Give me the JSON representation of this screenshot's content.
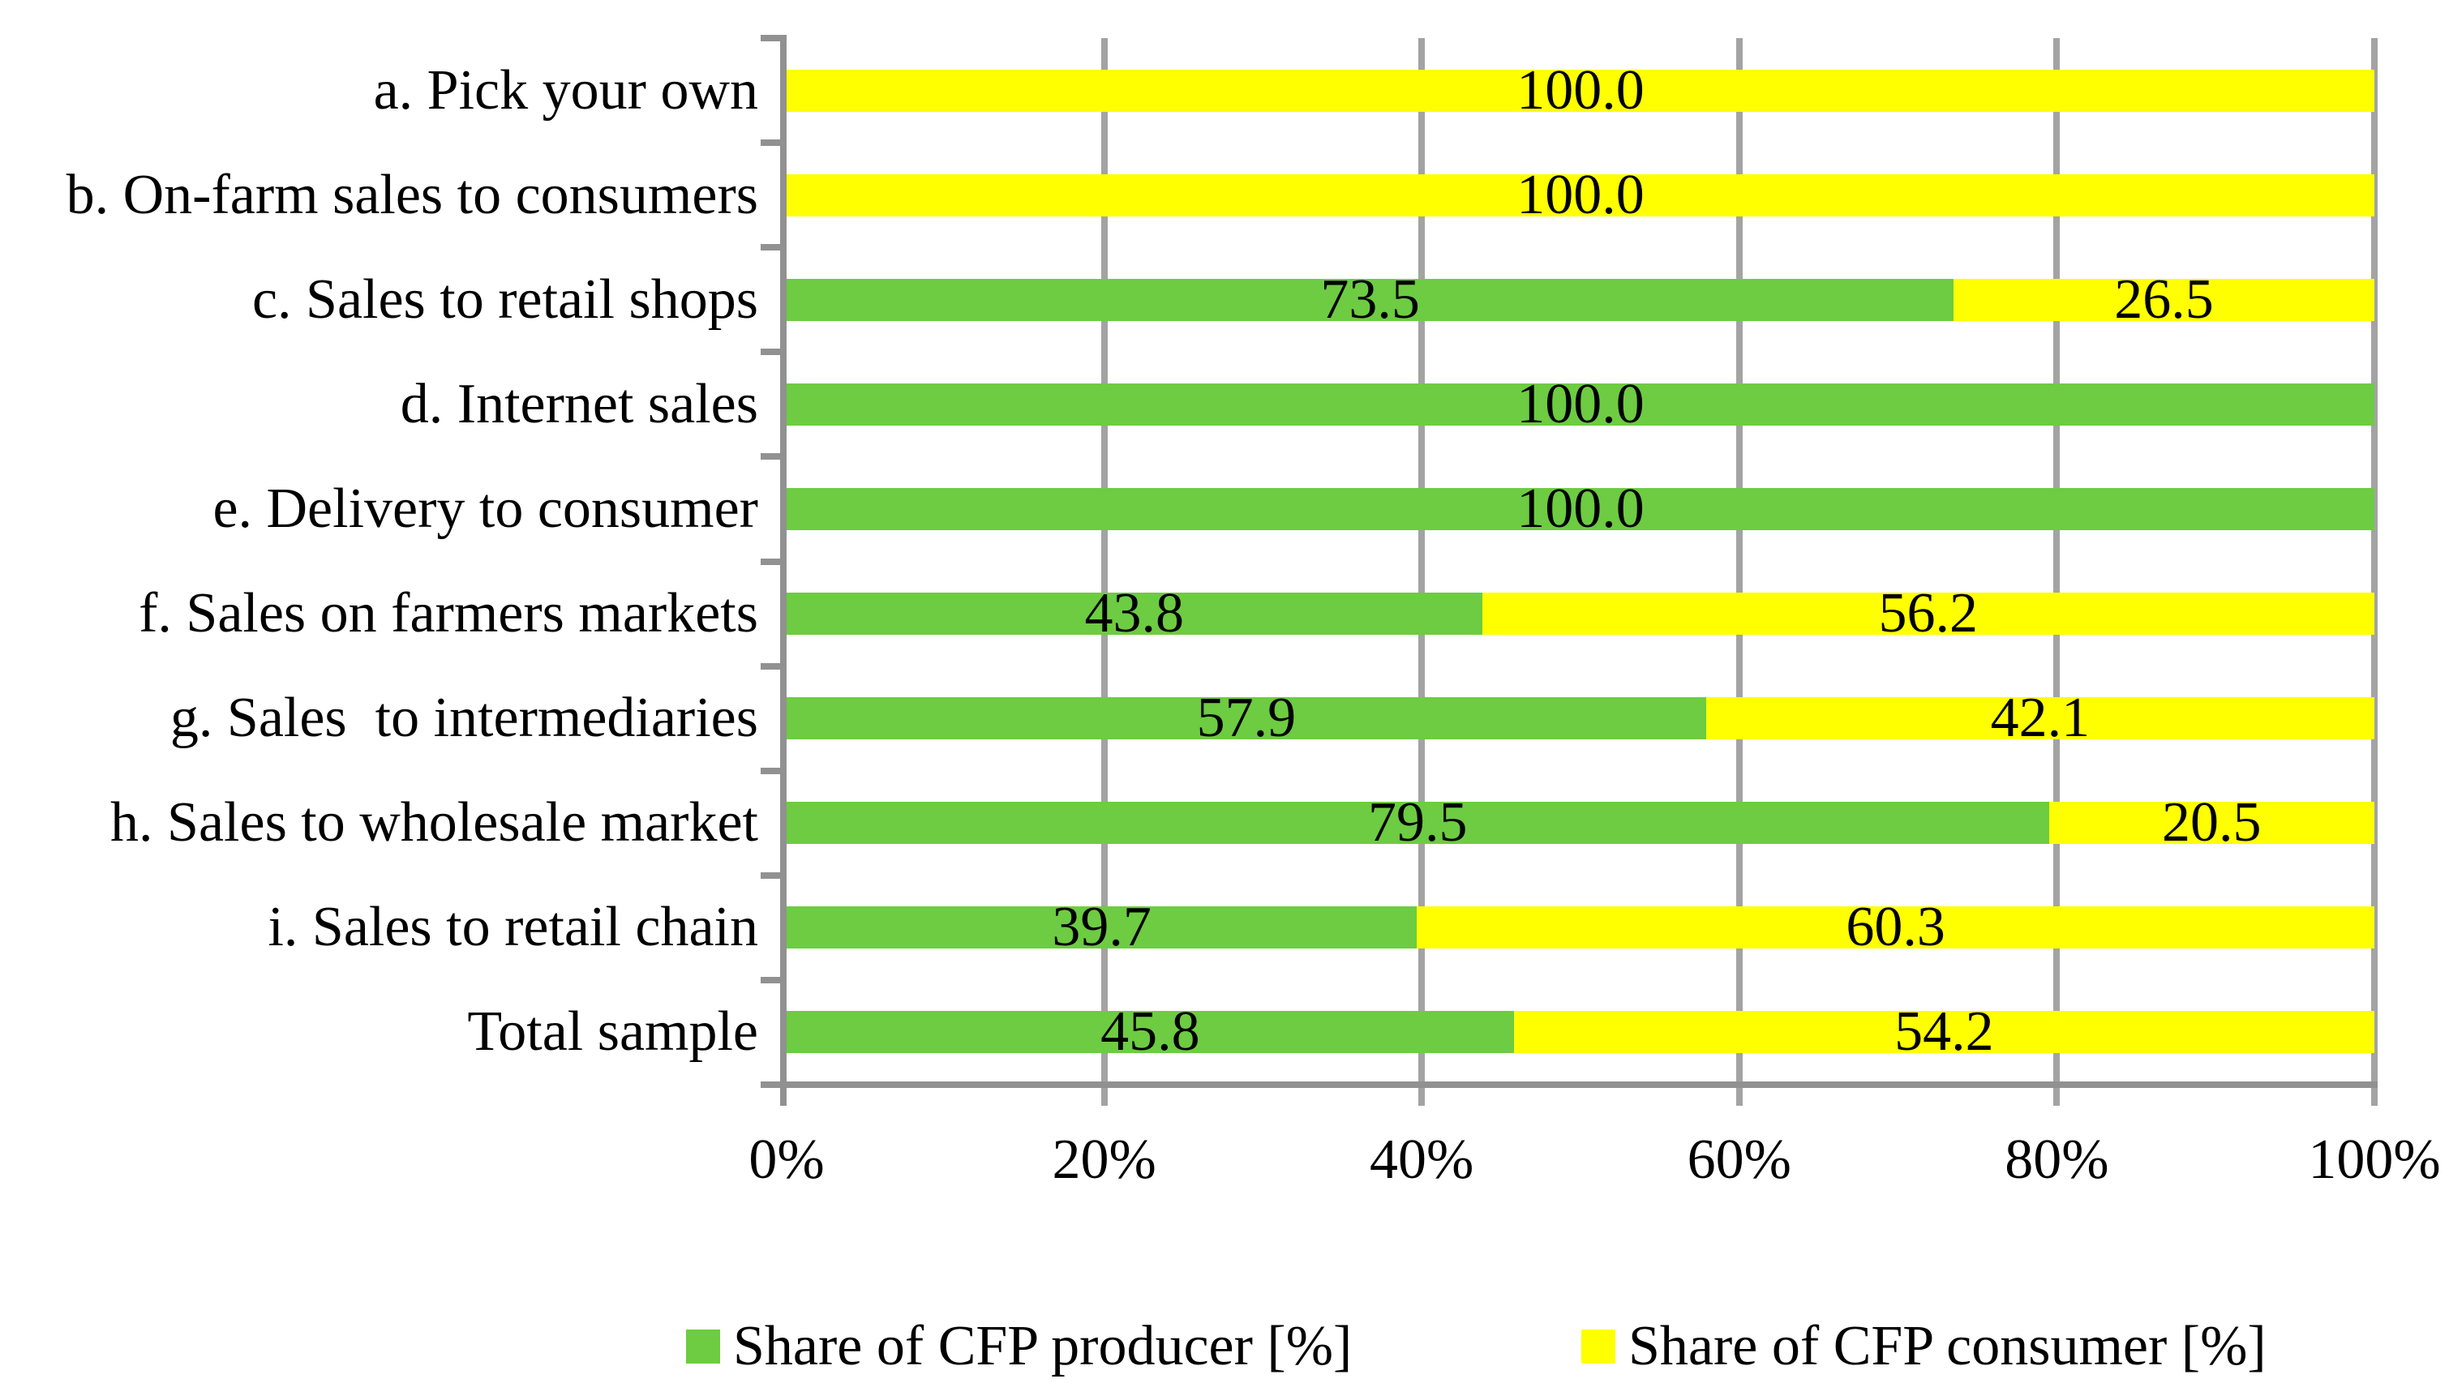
{
  "chart_data": {
    "type": "bar",
    "orientation": "horizontal",
    "stacked": true,
    "title": "",
    "xlabel": "",
    "ylabel": "",
    "categories": [
      "a. Pick your own",
      "b. On-farm sales to consumers",
      "c. Sales to retail shops",
      "d. Internet sales",
      "e. Delivery to consumer",
      "f. Sales on farmers markets",
      "g. Sales  to intermediaries",
      "h. Sales to wholesale market",
      "i. Sales to retail chain",
      "Total sample"
    ],
    "series": [
      {
        "name": "Share of CFP producer [%]",
        "color": "#6dcc41",
        "values": [
          0,
          0,
          73.5,
          100.0,
          100.0,
          43.8,
          57.9,
          79.5,
          39.7,
          45.8
        ]
      },
      {
        "name": "Share of CFP consumer [%]",
        "color": "#ffff00",
        "values": [
          100.0,
          100.0,
          26.5,
          0,
          0,
          56.2,
          42.1,
          20.5,
          60.3,
          54.2
        ]
      }
    ],
    "value_label_decimals": 1,
    "x_ticks": [
      "0%",
      "20%",
      "40%",
      "60%",
      "80%",
      "100%"
    ],
    "xlim": [
      0,
      100
    ],
    "grid": true,
    "legend_position": "bottom"
  },
  "colors": {
    "gridline": "#a3a3a3",
    "axis": "#919191",
    "text": "#000000",
    "background": "#ffffff"
  }
}
